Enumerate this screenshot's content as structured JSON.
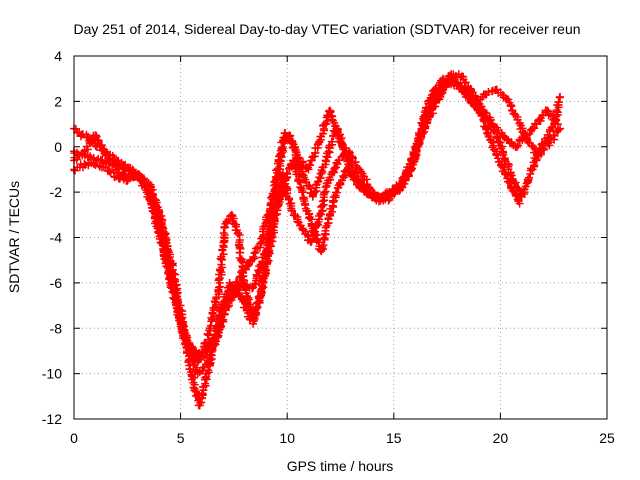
{
  "chart_data": {
    "type": "scatter",
    "title": "Day 251 of 2014, Sidereal Day-to-day VTEC variation (SDTVAR) for receiver reun",
    "xlabel": "GPS time / hours",
    "ylabel": "SDTVAR / TECUs",
    "xlim": [
      0,
      25
    ],
    "ylim": [
      -12,
      4
    ],
    "xticks": [
      0,
      5,
      10,
      15,
      20,
      25
    ],
    "yticks": [
      4,
      2,
      0,
      -2,
      -4,
      -6,
      -8,
      -10,
      -12
    ],
    "grid": true,
    "marker": "+",
    "color": "#ff0000",
    "series": [
      {
        "name": "track-1",
        "x": [
          0,
          0.6,
          1.2,
          2.0,
          2.8,
          3.4,
          4.0,
          4.5,
          5.0,
          5.4,
          5.8,
          6.1,
          6.5,
          7.0,
          7.6,
          8.2,
          8.8,
          9.3,
          9.8,
          10.1,
          10.5,
          11.0,
          11.5,
          12.0,
          12.5,
          13.0,
          13.4,
          13.8,
          14.3,
          14.8,
          15.3,
          15.8,
          16.2,
          16.5,
          16.9,
          17.3,
          17.8,
          18.3,
          18.8,
          19.3,
          19.8,
          20.2,
          20.6,
          21.0,
          21.4,
          21.8,
          22.2,
          22.6,
          22.8
        ],
        "y": [
          0.8,
          0.4,
          0.0,
          -0.6,
          -1.1,
          -1.6,
          -3.6,
          -5.8,
          -7.6,
          -8.8,
          -9.5,
          -9.2,
          -8.5,
          -7.2,
          -6.0,
          -5.2,
          -4.2,
          -2.2,
          0.2,
          0.5,
          -0.5,
          -1.0,
          0.2,
          1.6,
          0.3,
          -1.2,
          -1.8,
          -2.0,
          -2.2,
          -2.0,
          -1.8,
          -0.8,
          0.4,
          1.6,
          2.5,
          3.0,
          2.8,
          2.4,
          1.8,
          1.3,
          0.6,
          -0.5,
          -1.5,
          -2.2,
          -1.2,
          -0.2,
          0.4,
          1.2,
          2.2
        ]
      },
      {
        "name": "track-2",
        "x": [
          0,
          0.8,
          1.6,
          2.4,
          3.0,
          3.6,
          4.2,
          4.7,
          5.1,
          5.5,
          5.8,
          6.2,
          6.8,
          7.3,
          7.9,
          8.4,
          9.0,
          9.5,
          9.9,
          10.3,
          10.7,
          11.2,
          11.8,
          12.3,
          12.8,
          13.3,
          13.8,
          14.3,
          14.8,
          15.3,
          15.8,
          16.3,
          16.8,
          17.3,
          17.8,
          18.3,
          18.8,
          19.3,
          19.8,
          20.3,
          20.8,
          21.3,
          21.8,
          22.3,
          22.8
        ],
        "y": [
          -0.2,
          -0.5,
          -0.7,
          -1.0,
          -1.3,
          -1.8,
          -3.8,
          -6.4,
          -8.2,
          -9.2,
          -10.0,
          -9.6,
          -8.2,
          -6.8,
          -6.0,
          -6.2,
          -4.6,
          -1.6,
          0.6,
          0.1,
          -1.2,
          -2.2,
          -0.6,
          0.8,
          -0.4,
          -1.4,
          -2.1,
          -2.4,
          -2.3,
          -1.9,
          -1.0,
          0.6,
          1.8,
          2.6,
          3.0,
          2.4,
          1.9,
          2.3,
          2.5,
          2.1,
          1.2,
          0.2,
          -0.4,
          0.2,
          0.8
        ]
      },
      {
        "name": "track-3",
        "x": [
          0,
          0.7,
          1.4,
          2.1,
          2.8,
          3.5,
          4.1,
          4.6,
          5.0,
          5.3,
          5.6,
          5.9,
          6.4,
          6.9,
          7.3,
          7.8,
          8.4,
          8.9,
          9.4,
          9.8,
          10.2,
          10.7,
          11.1,
          11.5,
          11.9,
          12.4,
          12.9,
          13.4,
          13.9,
          14.4,
          14.9,
          15.4,
          15.9,
          16.3,
          16.8,
          17.3,
          17.8,
          18.2,
          18.7,
          19.2,
          19.6,
          20.1,
          20.5,
          20.9
        ],
        "y": [
          -1.0,
          -0.7,
          -0.9,
          -1.4,
          -1.2,
          -1.6,
          -3.2,
          -5.2,
          -7.2,
          -9.0,
          -10.4,
          -11.4,
          -9.4,
          -7.2,
          -6.0,
          -6.6,
          -7.8,
          -5.8,
          -3.4,
          -1.2,
          -2.8,
          -3.6,
          -4.2,
          -3.2,
          -1.6,
          -0.6,
          -0.2,
          -1.0,
          -1.9,
          -2.3,
          -2.1,
          -1.5,
          -0.5,
          0.8,
          2.0,
          2.7,
          2.9,
          2.6,
          2.0,
          1.2,
          0.2,
          -0.9,
          -1.8,
          -2.5
        ]
      },
      {
        "name": "track-4",
        "x": [
          0,
          0.5,
          1.0,
          1.5,
          2.0,
          2.5,
          3.0,
          3.6,
          4.2,
          4.8,
          5.2,
          5.6,
          6.0,
          6.4,
          6.8,
          7.1,
          7.4,
          7.7,
          8.0,
          8.4,
          8.8,
          9.2,
          9.6,
          10.0,
          10.3,
          10.7,
          11.2,
          11.6,
          12.0,
          12.4,
          12.8,
          13.2,
          13.7,
          14.2,
          14.7,
          15.2,
          15.7,
          16.2,
          16.7,
          17.2,
          17.7,
          18.2,
          18.7,
          19.2,
          19.7,
          20.2,
          20.7,
          21.2,
          21.7,
          22.2,
          22.7
        ],
        "y": [
          -0.6,
          -0.2,
          0.5,
          -0.4,
          -1.0,
          -1.5,
          -1.2,
          -2.4,
          -4.6,
          -7.0,
          -8.4,
          -9.0,
          -9.2,
          -8.0,
          -6.2,
          -3.4,
          -3.0,
          -3.8,
          -6.2,
          -7.6,
          -6.4,
          -4.0,
          -2.4,
          -1.2,
          -0.6,
          -2.0,
          -3.6,
          -4.6,
          -3.0,
          -1.8,
          -1.0,
          -1.4,
          -2.0,
          -2.2,
          -2.1,
          -1.8,
          -1.3,
          0.2,
          1.4,
          2.3,
          3.2,
          3.1,
          2.4,
          1.6,
          0.9,
          0.4,
          0.0,
          0.5,
          1.0,
          1.6,
          1.0
        ]
      }
    ]
  }
}
